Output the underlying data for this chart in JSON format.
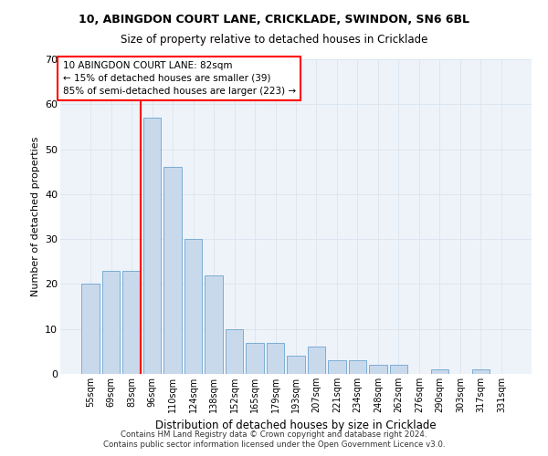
{
  "title1": "10, ABINGDON COURT LANE, CRICKLADE, SWINDON, SN6 6BL",
  "title2": "Size of property relative to detached houses in Cricklade",
  "xlabel": "Distribution of detached houses by size in Cricklade",
  "ylabel": "Number of detached properties",
  "categories": [
    "55sqm",
    "69sqm",
    "83sqm",
    "96sqm",
    "110sqm",
    "124sqm",
    "138sqm",
    "152sqm",
    "165sqm",
    "179sqm",
    "193sqm",
    "207sqm",
    "221sqm",
    "234sqm",
    "248sqm",
    "262sqm",
    "276sqm",
    "290sqm",
    "303sqm",
    "317sqm",
    "331sqm"
  ],
  "values": [
    20,
    23,
    23,
    57,
    46,
    30,
    22,
    10,
    7,
    7,
    4,
    6,
    3,
    3,
    2,
    2,
    0,
    1,
    0,
    1,
    0
  ],
  "bar_color": "#c9d9ec",
  "bar_edge_color": "#7aadd4",
  "grid_color": "#dce6f0",
  "background_color": "#eef3fa",
  "annotation_box_text": "10 ABINGDON COURT LANE: 82sqm\n← 15% of detached houses are smaller (39)\n85% of semi-detached houses are larger (223) →",
  "vline_bar_index": 2,
  "footer1": "Contains HM Land Registry data © Crown copyright and database right 2024.",
  "footer2": "Contains public sector information licensed under the Open Government Licence v3.0.",
  "ylim": [
    0,
    70
  ],
  "yticks": [
    0,
    10,
    20,
    30,
    40,
    50,
    60,
    70
  ]
}
